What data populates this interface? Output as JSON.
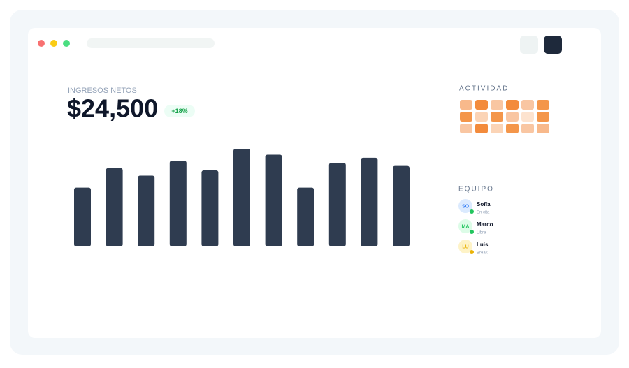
{
  "header": {
    "label": "INGRESOS NETOS",
    "amount": "$24,500",
    "badge": "+18%"
  },
  "chart_data": {
    "type": "bar",
    "values": [
      79,
      105,
      95,
      115,
      102,
      131,
      123,
      79,
      112,
      119,
      108
    ],
    "color": "#2f3c50"
  },
  "activity": {
    "title": "ACTIVIDAD",
    "cells": [
      [
        "#f8b98b",
        "#f38b3c",
        "#f9c6a2",
        "#f38b3c",
        "#f9c6a2",
        "#f4964a"
      ],
      [
        "#f4964a",
        "#fbd4b6",
        "#f4964a",
        "#f9c6a2",
        "#fde3cf",
        "#f4964a"
      ],
      [
        "#f9c6a2",
        "#f38b3c",
        "#fbd4b6",
        "#f4964a",
        "#f9c6a2",
        "#f8b98b"
      ]
    ]
  },
  "team": {
    "title": "EQUIPO",
    "members": [
      {
        "initials": "SO",
        "name": "Sofía",
        "status": "En cita",
        "avatar": "#dbeafe",
        "text": "#3b82f6",
        "dot": "#22c55e"
      },
      {
        "initials": "MA",
        "name": "Marco",
        "status": "Libre",
        "avatar": "#dcfce7",
        "text": "#22c55e",
        "dot": "#22c55e"
      },
      {
        "initials": "LU",
        "name": "Luis",
        "status": "Break",
        "avatar": "#fef3c7",
        "text": "#eab308",
        "dot": "#eab308"
      }
    ]
  }
}
